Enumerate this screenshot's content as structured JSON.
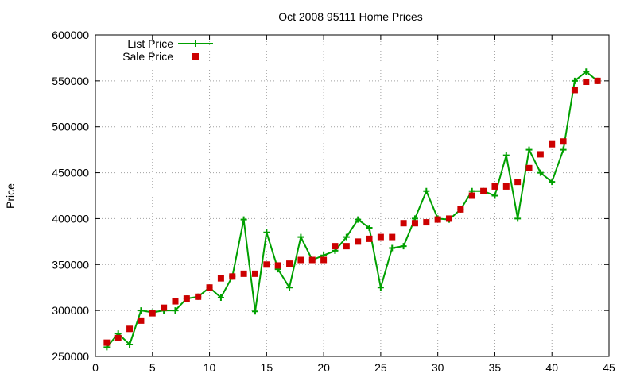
{
  "chart_data": {
    "type": "line",
    "title": "Oct 2008 95111 Home Prices",
    "xlabel": "",
    "ylabel": "Price",
    "xlim": [
      0,
      45
    ],
    "ylim": [
      250000,
      600000
    ],
    "xticks": [
      0,
      5,
      10,
      15,
      20,
      25,
      30,
      35,
      40,
      45
    ],
    "yticks": [
      250000,
      300000,
      350000,
      400000,
      450000,
      500000,
      550000,
      600000
    ],
    "grid": true,
    "legend_position": "top-left",
    "series": [
      {
        "name": "List Price",
        "style": "line-with-plus-markers",
        "color": "#00a000",
        "x": [
          1,
          2,
          3,
          4,
          5,
          6,
          7,
          8,
          9,
          10,
          11,
          12,
          13,
          14,
          15,
          16,
          17,
          18,
          19,
          20,
          21,
          22,
          23,
          24,
          25,
          26,
          27,
          28,
          29,
          30,
          31,
          32,
          33,
          34,
          35,
          36,
          37,
          38,
          39,
          40,
          41,
          42,
          43,
          44
        ],
        "values": [
          260000,
          275000,
          263000,
          300000,
          298000,
          300000,
          300000,
          313000,
          315000,
          325000,
          314000,
          337000,
          399000,
          299000,
          385000,
          345000,
          325000,
          380000,
          355000,
          360000,
          365000,
          380000,
          399000,
          390000,
          325000,
          368000,
          370000,
          400000,
          430000,
          400000,
          399000,
          410000,
          430000,
          430000,
          425000,
          469000,
          400000,
          475000,
          450000,
          440000,
          475000,
          550000,
          560000,
          550000
        ]
      },
      {
        "name": "Sale Price",
        "style": "square-markers",
        "color": "#cc0000",
        "x": [
          1,
          2,
          3,
          4,
          5,
          6,
          7,
          8,
          9,
          10,
          11,
          12,
          13,
          14,
          15,
          16,
          17,
          18,
          19,
          20,
          21,
          22,
          23,
          24,
          25,
          26,
          27,
          28,
          29,
          30,
          31,
          32,
          33,
          34,
          35,
          36,
          37,
          38,
          39,
          40,
          41,
          42,
          43,
          44
        ],
        "values": [
          265000,
          270000,
          280000,
          289000,
          297000,
          303000,
          310000,
          313000,
          315000,
          325000,
          335000,
          337000,
          340000,
          340000,
          350000,
          349000,
          351000,
          355000,
          355000,
          355000,
          370000,
          370000,
          375000,
          378000,
          380000,
          380000,
          395000,
          395000,
          396000,
          399000,
          400000,
          410000,
          425000,
          430000,
          435000,
          435000,
          440000,
          455000,
          470000,
          481000,
          484000,
          540000,
          549000,
          550000
        ]
      }
    ]
  }
}
